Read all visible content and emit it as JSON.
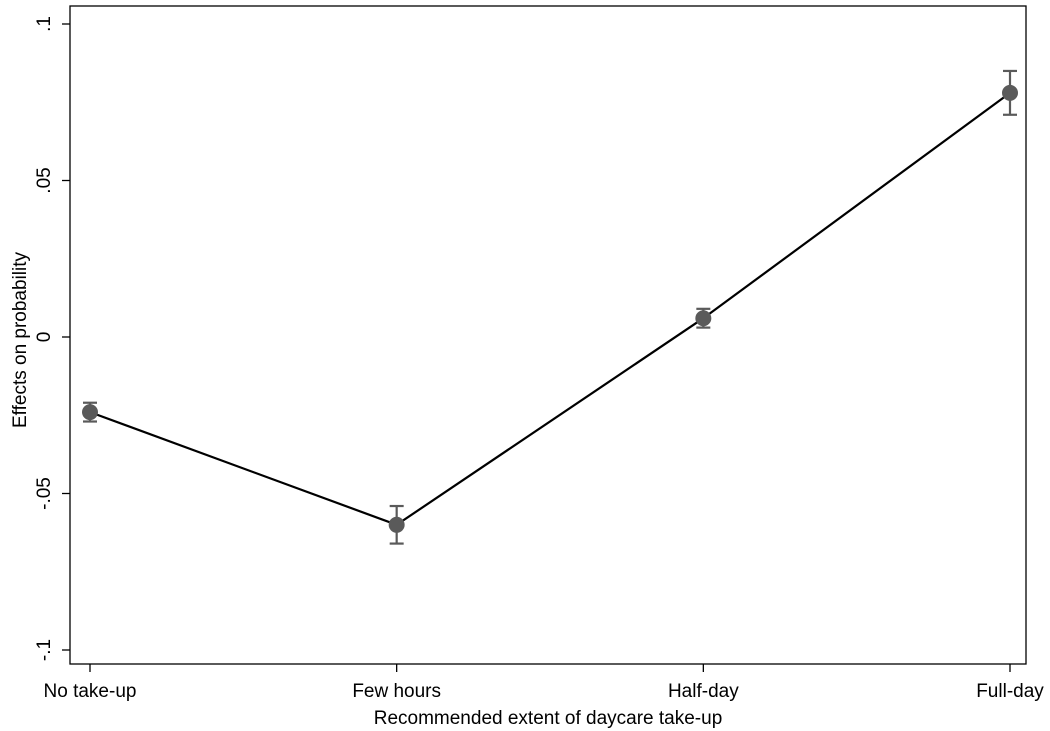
{
  "chart_data": {
    "type": "line",
    "title": "",
    "xlabel": "Recommended extent of daycare take-up",
    "ylabel": "Effects on probability",
    "categories": [
      "No take-up",
      "Few hours",
      "Half-day",
      "Full-day"
    ],
    "series": [
      {
        "values": [
          -0.024,
          -0.06,
          0.006,
          0.078
        ],
        "ci_low": [
          -0.027,
          -0.066,
          0.003,
          0.071
        ],
        "ci_high": [
          -0.021,
          -0.054,
          0.009,
          0.085
        ]
      }
    ],
    "ylim": [
      -0.105,
      0.1
    ],
    "yticks": [
      {
        "value": -0.1,
        "label": "-.1"
      },
      {
        "value": -0.05,
        "label": "-.05"
      },
      {
        "value": 0,
        "label": "0"
      },
      {
        "value": 0.05,
        "label": ".05"
      },
      {
        "value": 0.1,
        "label": ".1"
      }
    ],
    "grid": false,
    "colors": {
      "line": "#000000",
      "marker": "#5a5a5a",
      "errorbar": "#5a5a5a",
      "frame": "#000000"
    }
  }
}
